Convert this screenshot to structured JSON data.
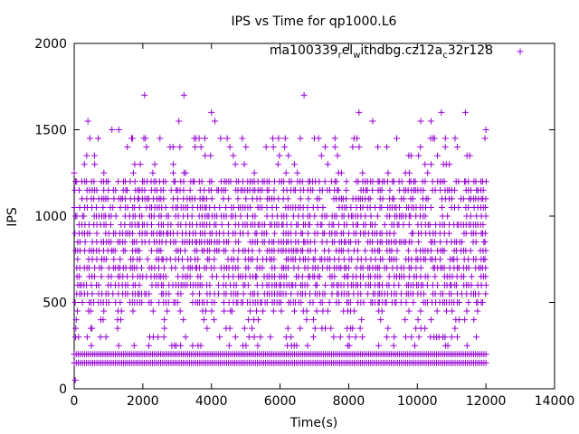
{
  "chart_data": {
    "type": "scatter",
    "title": "IPS vs Time for qp1000.L6",
    "xlabel": "Time(s)",
    "ylabel": "IPS",
    "xlim": [
      0,
      14000
    ],
    "ylim": [
      0,
      2000
    ],
    "xticks": [
      0,
      2000,
      4000,
      6000,
      8000,
      10000,
      12000,
      14000
    ],
    "yticks": [
      0,
      500,
      1000,
      1500,
      2000
    ],
    "grid": false,
    "legend_position": "top-right",
    "marker": "+",
    "series": [
      {
        "name": "ma100339_rel_withdbg.cz12a_c32r128",
        "name_parts": {
          "p1": "ma100339",
          "s1": "r",
          "p2": "el",
          "s2": "w",
          "p3": "ithdbg.cz12a",
          "s3": "c",
          "p4": "32r128"
        },
        "color": "#9400d3",
        "x_range": [
          0,
          12000
        ],
        "dense_levels": [
          150,
          200
        ],
        "common_levels": [
          500,
          550,
          600,
          650,
          700,
          750,
          800,
          850,
          900,
          950,
          1000,
          1050,
          1100,
          1150,
          1200
        ],
        "sparse_levels": [
          250,
          300,
          350,
          400,
          450,
          1250,
          1300,
          1350,
          1400,
          1450
        ],
        "outliers": [
          {
            "x": 400,
            "y": 1550
          },
          {
            "x": 1100,
            "y": 1500
          },
          {
            "x": 1300,
            "y": 1500
          },
          {
            "x": 2050,
            "y": 1700
          },
          {
            "x": 3200,
            "y": 1700
          },
          {
            "x": 3050,
            "y": 1550
          },
          {
            "x": 4000,
            "y": 1600
          },
          {
            "x": 4100,
            "y": 1550
          },
          {
            "x": 6700,
            "y": 1700
          },
          {
            "x": 8300,
            "y": 1600
          },
          {
            "x": 8700,
            "y": 1550
          },
          {
            "x": 10100,
            "y": 1550
          },
          {
            "x": 10400,
            "y": 1550
          },
          {
            "x": 10700,
            "y": 1600
          },
          {
            "x": 11400,
            "y": 1600
          },
          {
            "x": 12000,
            "y": 1500
          },
          {
            "x": 700,
            "y": 1450
          },
          {
            "x": 1700,
            "y": 1450
          },
          {
            "x": 2500,
            "y": 1450
          },
          {
            "x": 3500,
            "y": 1450
          },
          {
            "x": 4900,
            "y": 1450
          },
          {
            "x": 7000,
            "y": 1450
          },
          {
            "x": 7600,
            "y": 1450
          },
          {
            "x": 9400,
            "y": 1450
          },
          {
            "x": 10500,
            "y": 1450
          },
          {
            "x": 11100,
            "y": 1450
          }
        ]
      }
    ]
  }
}
